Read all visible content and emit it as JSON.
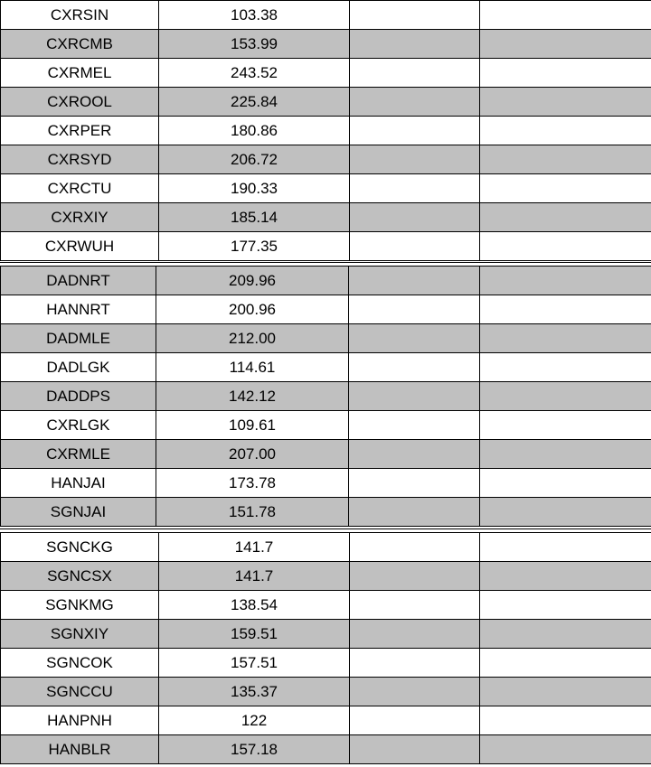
{
  "blocks": [
    {
      "rows": [
        {
          "code": "CXRSIN",
          "value": "103.38",
          "shaded": false
        },
        {
          "code": "CXRCMB",
          "value": "153.99",
          "shaded": true
        },
        {
          "code": "CXRMEL",
          "value": "243.52",
          "shaded": false
        },
        {
          "code": "CXROOL",
          "value": "225.84",
          "shaded": true
        },
        {
          "code": "CXRPER",
          "value": "180.86",
          "shaded": false
        },
        {
          "code": "CXRSYD",
          "value": "206.72",
          "shaded": true
        },
        {
          "code": "CXRCTU",
          "value": "190.33",
          "shaded": false
        },
        {
          "code": "CXRXIY",
          "value": "185.14",
          "shaded": true
        },
        {
          "code": "CXRWUH",
          "value": "177.35",
          "shaded": false
        }
      ]
    },
    {
      "rows": [
        {
          "code": "DADNRT",
          "value": "209.96",
          "shaded": true
        },
        {
          "code": "HANNRT",
          "value": "200.96",
          "shaded": false
        },
        {
          "code": "DADMLE",
          "value": "212.00",
          "shaded": true
        },
        {
          "code": "DADLGK",
          "value": "114.61",
          "shaded": false
        },
        {
          "code": "DADDPS",
          "value": "142.12",
          "shaded": true
        },
        {
          "code": "CXRLGK",
          "value": "109.61",
          "shaded": false
        },
        {
          "code": "CXRMLE",
          "value": "207.00",
          "shaded": true
        },
        {
          "code": "HANJAI",
          "value": "173.78",
          "shaded": false
        },
        {
          "code": "SGNJAI",
          "value": "151.78",
          "shaded": true
        }
      ]
    },
    {
      "rows": [
        {
          "code": "SGNCKG",
          "value": "141.7",
          "shaded": false
        },
        {
          "code": "SGNCSX",
          "value": "141.7",
          "shaded": true
        },
        {
          "code": "SGNKMG",
          "value": "138.54",
          "shaded": false
        },
        {
          "code": "SGNXIY",
          "value": "159.51",
          "shaded": true
        },
        {
          "code": "SGNCOK",
          "value": "157.51",
          "shaded": false
        },
        {
          "code": "SGNCCU",
          "value": "135.37",
          "shaded": true
        },
        {
          "code": "HANPNH",
          "value": "122",
          "shaded": false
        },
        {
          "code": "HANBLR",
          "value": "157.18",
          "shaded": true
        }
      ]
    }
  ],
  "colors": {
    "shade": "#c0c0c0",
    "border": "#000000",
    "background": "#ffffff"
  }
}
